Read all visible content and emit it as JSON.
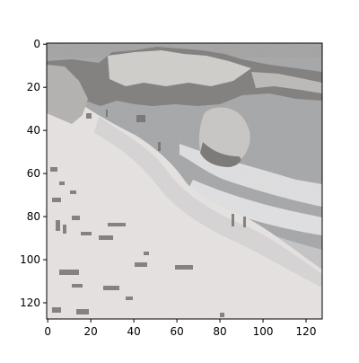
{
  "chart_data": {
    "type": "image",
    "title": "",
    "xlabel": "",
    "ylabel": "",
    "image_width": 128,
    "image_height": 128,
    "xlim": [
      -0.5,
      127.5
    ],
    "ylim": [
      127.5,
      -0.5
    ],
    "x_ticks": [
      0,
      20,
      40,
      60,
      80,
      100,
      120
    ],
    "y_ticks": [
      0,
      20,
      40,
      60,
      80,
      100,
      120
    ],
    "x_tick_labels": [
      "0",
      "20",
      "40",
      "60",
      "80",
      "100",
      "120"
    ],
    "y_tick_labels": [
      "0",
      "20",
      "40",
      "60",
      "80",
      "100",
      "120"
    ],
    "colors": {
      "sky": "#8a8a8a",
      "rock_dark": "#5a5856",
      "rock_light": "#c9c6c2",
      "sea": "#8c8e90",
      "surf": "#e6e6e8",
      "wet_sand": "#cfcdcd",
      "dry_sand": "#dedad8",
      "beachgoers": "#4a4542",
      "axis": "#000000"
    }
  }
}
